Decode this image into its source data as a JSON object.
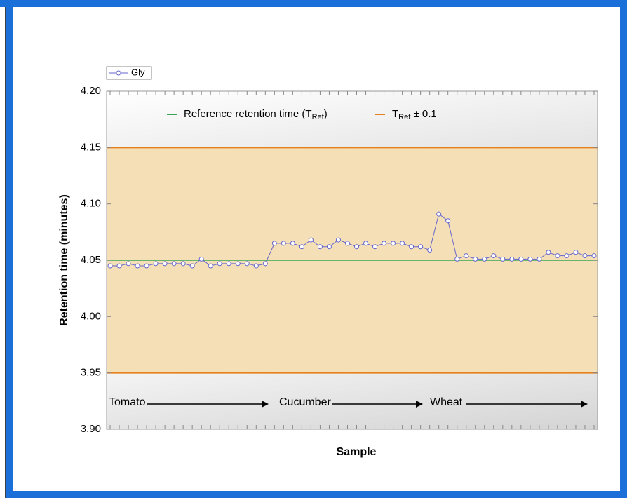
{
  "chart_data": {
    "type": "line",
    "ylabel": "Retention time (minutes)",
    "xlabel": "Sample",
    "ylim": [
      3.9,
      4.2
    ],
    "yticks": [
      {
        "value": 3.9,
        "label": "3.90"
      },
      {
        "value": 3.95,
        "label": "3.95"
      },
      {
        "value": 4.0,
        "label": "4.00"
      },
      {
        "value": 4.05,
        "label": "4.05"
      },
      {
        "value": 4.1,
        "label": "4.10"
      },
      {
        "value": 4.15,
        "label": "4.15"
      },
      {
        "value": 4.2,
        "label": "4.20"
      }
    ],
    "series": [
      {
        "name": "Gly",
        "color": "#6666cc",
        "values": [
          4.045,
          4.045,
          4.047,
          4.045,
          4.045,
          4.047,
          4.047,
          4.047,
          4.047,
          4.045,
          4.051,
          4.045,
          4.047,
          4.047,
          4.047,
          4.047,
          4.045,
          4.047,
          4.065,
          4.065,
          4.065,
          4.062,
          4.068,
          4.062,
          4.062,
          4.068,
          4.065,
          4.062,
          4.065,
          4.062,
          4.065,
          4.065,
          4.065,
          4.062,
          4.062,
          4.059,
          4.091,
          4.085,
          4.051,
          4.054,
          4.051,
          4.051,
          4.054,
          4.051,
          4.051,
          4.051,
          4.051,
          4.051,
          4.057,
          4.054,
          4.054,
          4.057,
          4.054,
          4.054
        ]
      }
    ],
    "reference": {
      "value": 4.05,
      "color": "#3aa655",
      "label": {
        "text": "Reference retention time (T",
        "sub": "Ref",
        "end": ")"
      }
    },
    "band": {
      "low": 3.95,
      "high": 4.15,
      "color": "#e6801e",
      "fill": "#f5dfb6",
      "label": {
        "text": "T",
        "sub": "Ref",
        "end": " ± 0.1"
      }
    },
    "groups": [
      "Tomato",
      "Cucumber",
      "Wheat"
    ]
  }
}
